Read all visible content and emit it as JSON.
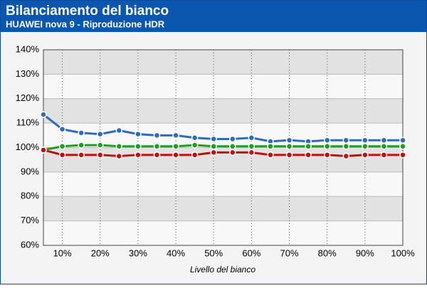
{
  "chart_data": {
    "type": "line",
    "title": "Bilanciamento del bianco",
    "subtitle": "HUAWEI nova 9 - Riproduzione HDR",
    "x_label": "Livello del bianco",
    "x": [
      5,
      10,
      15,
      20,
      25,
      30,
      35,
      40,
      45,
      50,
      55,
      60,
      65,
      70,
      75,
      80,
      85,
      90,
      95,
      100
    ],
    "xlim": [
      5,
      100
    ],
    "xticks": [
      {
        "value": 10,
        "label": "10%"
      },
      {
        "value": 20,
        "label": "20%"
      },
      {
        "value": 30,
        "label": "30%"
      },
      {
        "value": 40,
        "label": "40%"
      },
      {
        "value": 50,
        "label": "50%"
      },
      {
        "value": 60,
        "label": "60%"
      },
      {
        "value": 70,
        "label": "70%"
      },
      {
        "value": 80,
        "label": "80%"
      },
      {
        "value": 90,
        "label": "90%"
      },
      {
        "value": 100,
        "label": "100%"
      }
    ],
    "ylim": [
      60,
      140
    ],
    "yticks": [
      {
        "value": 60,
        "label": "60%"
      },
      {
        "value": 70,
        "label": "70%"
      },
      {
        "value": 80,
        "label": "80%"
      },
      {
        "value": 90,
        "label": "90%"
      },
      {
        "value": 100,
        "label": "100%"
      },
      {
        "value": 110,
        "label": "110%"
      },
      {
        "value": 120,
        "label": "120%"
      },
      {
        "value": 130,
        "label": "130%"
      },
      {
        "value": 140,
        "label": "140%"
      }
    ],
    "grid": true,
    "series": [
      {
        "color": "#2e6bb8",
        "values": [
          113.5,
          107.5,
          106,
          105.5,
          107,
          105.5,
          105,
          105,
          104,
          103.5,
          103.5,
          104,
          102.5,
          103,
          102.5,
          103,
          103,
          103,
          103,
          103
        ]
      },
      {
        "color": "#1f9e1f",
        "values": [
          99,
          100.5,
          101,
          101,
          100.5,
          100.5,
          100.5,
          100.5,
          101,
          100.5,
          100.5,
          100.5,
          100.5,
          100.5,
          100.5,
          100.5,
          100.5,
          100.5,
          100.5,
          100.5
        ]
      },
      {
        "color": "#c01010",
        "values": [
          99,
          97,
          97,
          97,
          96.5,
          97,
          97,
          97,
          97,
          98,
          98,
          98,
          97,
          97,
          97,
          97,
          96.5,
          97,
          97,
          97
        ]
      }
    ]
  }
}
